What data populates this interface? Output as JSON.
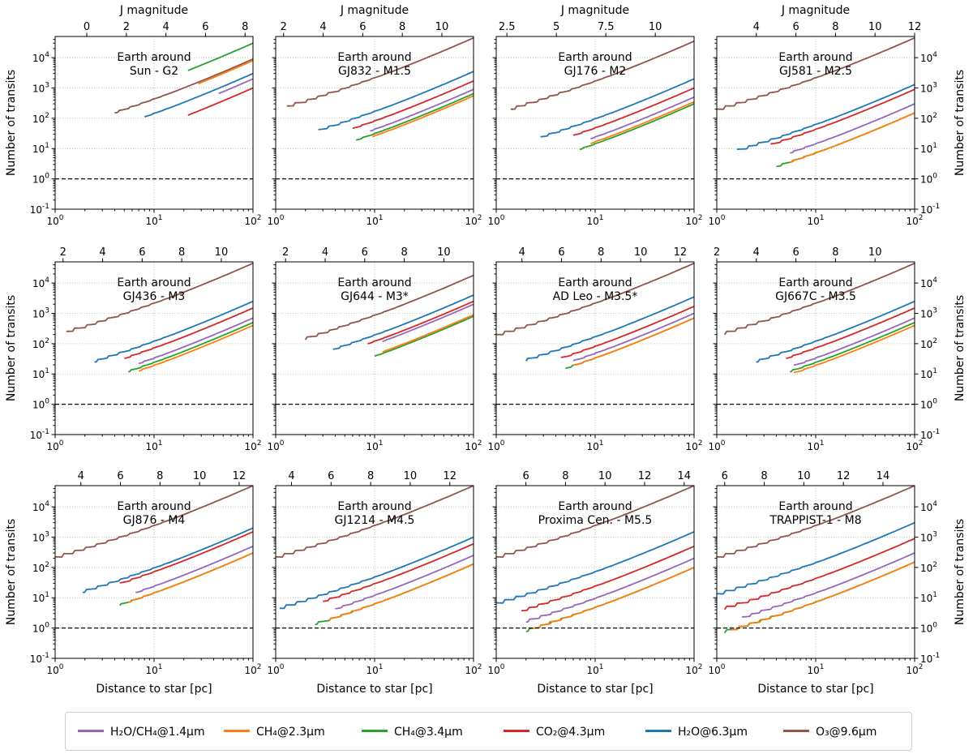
{
  "chart_data": {
    "type": "line",
    "layout": "3x4 grid of small multiples",
    "xlabel": "Distance to star [pc]",
    "ylabel": "Number of transits",
    "top_axis_label": "J magnitude",
    "xscale": "log",
    "yscale": "log",
    "xlim": [
      1,
      100
    ],
    "ylim": [
      0.1,
      50000
    ],
    "x_ticks": [
      "10^0",
      "10^1",
      "10^2"
    ],
    "y_ticks": [
      "10^-1",
      "10^0",
      "10^1",
      "10^2",
      "10^3",
      "10^4"
    ],
    "reference_line": {
      "y": 1,
      "style": "dashed",
      "color": "#000000"
    },
    "grid": true,
    "legend": [
      {
        "key": "h2o_ch4",
        "label": "H₂O/CH₄@1.4μm",
        "color": "#9467bd"
      },
      {
        "key": "ch4_23",
        "label": "CH₄@2.3μm",
        "color": "#ff7f0e"
      },
      {
        "key": "ch4_34",
        "label": "CH₄@3.4μm",
        "color": "#2ca02c"
      },
      {
        "key": "co2",
        "label": "CO₂@4.3μm",
        "color": "#d62728"
      },
      {
        "key": "h2o_63",
        "label": "H₂O@6.3μm",
        "color": "#1f77b4"
      },
      {
        "key": "o3",
        "label": "O₃@9.6μm",
        "color": "#8c564b"
      }
    ],
    "panels": [
      {
        "title_line1": "Earth around",
        "title_line2": "Sun - G2",
        "jmag": {
          "m1": -1.6,
          "ticks": [
            0,
            2,
            4,
            6,
            8
          ]
        },
        "series": {
          "h2o_ch4": {
            "d_min": 45,
            "y100": 2000
          },
          "ch4_23": {
            "d_min": 28,
            "y100": 8000
          },
          "ch4_34": {
            "d_min": 22,
            "y100": 30000
          },
          "co2": {
            "d_min": 22,
            "y100": 1000
          },
          "h2o_63": {
            "d_min": 8,
            "y100": 3000
          },
          "o3": {
            "d_min": 4,
            "y100": 9000
          }
        }
      },
      {
        "title_line1": "Earth around",
        "title_line2": "GJ832 - M1.5",
        "jmag": {
          "m1": 1.6,
          "ticks": [
            2,
            4,
            6,
            8,
            10
          ]
        },
        "series": {
          "h2o_ch4": {
            "d_min": 9,
            "y100": 900
          },
          "ch4_23": {
            "d_min": 9.5,
            "y100": 550
          },
          "ch4_34": {
            "d_min": 6.5,
            "y100": 650
          },
          "co2": {
            "d_min": 6,
            "y100": 1700
          },
          "h2o_63": {
            "d_min": 2.7,
            "y100": 3500
          },
          "o3": {
            "d_min": 1.3,
            "y100": 45000
          }
        }
      },
      {
        "title_line1": "Earth around",
        "title_line2": "GJ176 - M2",
        "jmag": {
          "m1": 1.96,
          "ticks": [
            2.5,
            5.0,
            7.5,
            10.0
          ]
        },
        "series": {
          "h2o_ch4": {
            "d_min": 9,
            "y100": 500
          },
          "ch4_23": {
            "d_min": 9,
            "y100": 350
          },
          "ch4_34": {
            "d_min": 7,
            "y100": 300
          },
          "co2": {
            "d_min": 6,
            "y100": 1000
          },
          "h2o_63": {
            "d_min": 2.8,
            "y100": 2000
          },
          "o3": {
            "d_min": 1.4,
            "y100": 35000
          }
        }
      },
      {
        "title_line1": "Earth around",
        "title_line2": "GJ581 - M2.5",
        "jmag": {
          "m1": 2.0,
          "ticks": [
            4,
            6,
            8,
            10,
            12
          ]
        },
        "series": {
          "h2o_ch4": {
            "d_min": 5.5,
            "y100": 300
          },
          "ch4_23": {
            "d_min": 5.5,
            "y100": 150
          },
          "ch4_34": {
            "d_min": 4,
            "y100": 150
          },
          "co2": {
            "d_min": 3.5,
            "y100": 900
          },
          "h2o_63": {
            "d_min": 1.6,
            "y100": 1300
          },
          "o3": {
            "d_min": 1.0,
            "y100": 45000
          }
        }
      },
      {
        "title_line1": "Earth around",
        "title_line2": "GJ436 - M3",
        "jmag": {
          "m1": 1.6,
          "ticks": [
            2,
            4,
            6,
            8,
            10
          ]
        },
        "series": {
          "h2o_ch4": {
            "d_min": 7,
            "y100": 700
          },
          "ch4_23": {
            "d_min": 7,
            "y100": 400
          },
          "ch4_34": {
            "d_min": 5.5,
            "y100": 500
          },
          "co2": {
            "d_min": 5,
            "y100": 1500
          },
          "h2o_63": {
            "d_min": 2.5,
            "y100": 2500
          },
          "o3": {
            "d_min": 1.3,
            "y100": 45000
          }
        }
      },
      {
        "title_line1": "Earth around",
        "title_line2": "GJ644 - M3*",
        "jmag": {
          "m1": 1.5,
          "ticks": [
            2,
            4,
            6,
            8,
            10
          ]
        },
        "series": {
          "h2o_ch4": {
            "d_min": 12,
            "y100": 2000
          },
          "ch4_23": {
            "d_min": 12,
            "y100": 900
          },
          "ch4_34": {
            "d_min": 10,
            "y100": 800
          },
          "co2": {
            "d_min": 8.5,
            "y100": 2500
          },
          "h2o_63": {
            "d_min": 3.8,
            "y100": 4000
          },
          "o3": {
            "d_min": 2,
            "y100": 18000
          }
        }
      },
      {
        "title_line1": "Earth around",
        "title_line2": "AD Leo - M3.5*",
        "jmag": {
          "m1": 2.7,
          "ticks": [
            4,
            6,
            8,
            10,
            12
          ]
        },
        "series": {
          "h2o_ch4": {
            "d_min": 6,
            "y100": 1000
          },
          "ch4_23": {
            "d_min": 6,
            "y100": 700
          },
          "ch4_34": {
            "d_min": 5,
            "y100": 700
          },
          "co2": {
            "d_min": 4.5,
            "y100": 1700
          },
          "h2o_63": {
            "d_min": 2,
            "y100": 3500
          },
          "o3": {
            "d_min": 1.0,
            "y100": 45000
          }
        }
      },
      {
        "title_line1": "Earth around",
        "title_line2": "GJ667C - M3.5",
        "jmag": {
          "m1": 2.0,
          "ticks": [
            2,
            4,
            6,
            8,
            10
          ]
        },
        "series": {
          "h2o_ch4": {
            "d_min": 6,
            "y100": 700
          },
          "ch4_23": {
            "d_min": 6,
            "y100": 400
          },
          "ch4_34": {
            "d_min": 5.5,
            "y100": 500
          },
          "co2": {
            "d_min": 5,
            "y100": 1500
          },
          "h2o_63": {
            "d_min": 2.5,
            "y100": 2500
          },
          "o3": {
            "d_min": 1.2,
            "y100": 45000
          }
        }
      },
      {
        "title_line1": "Earth around",
        "title_line2": "GJ876 - M4",
        "jmag": {
          "m1": 2.7,
          "ticks": [
            4,
            6,
            8,
            10,
            12
          ]
        },
        "series": {
          "h2o_ch4": {
            "d_min": 6.5,
            "y100": 500
          },
          "ch4_23": {
            "d_min": 5.5,
            "y100": 300
          },
          "ch4_34": {
            "d_min": 4.5,
            "y100": 300
          },
          "co2": {
            "d_min": 4.5,
            "y100": 1500
          },
          "h2o_63": {
            "d_min": 1.9,
            "y100": 2000
          },
          "o3": {
            "d_min": 1.0,
            "y100": 50000
          }
        }
      },
      {
        "title_line1": "Earth around",
        "title_line2": "GJ1214 - M4.5",
        "jmag": {
          "m1": 3.2,
          "ticks": [
            4,
            6,
            8,
            10,
            12
          ]
        },
        "series": {
          "h2o_ch4": {
            "d_min": 4,
            "y100": 250
          },
          "ch4_23": {
            "d_min": 3.5,
            "y100": 130
          },
          "ch4_34": {
            "d_min": 2.5,
            "y100": 130
          },
          "co2": {
            "d_min": 3.0,
            "y100": 600
          },
          "h2o_63": {
            "d_min": 1.1,
            "y100": 1000
          },
          "o3": {
            "d_min": 1.0,
            "y100": 50000
          }
        }
      },
      {
        "title_line1": "Earth around",
        "title_line2": "Proxima Cen. - M5.5",
        "jmag": {
          "m1": 4.5,
          "ticks": [
            6,
            8,
            10,
            12,
            14
          ]
        },
        "series": {
          "h2o_ch4": {
            "d_min": 2,
            "y100": 200
          },
          "ch4_23": {
            "d_min": 2.2,
            "y100": 100
          },
          "ch4_34": {
            "d_min": 2,
            "y100": 100
          },
          "co2": {
            "d_min": 1.8,
            "y100": 500
          },
          "h2o_63": {
            "d_min": 1.0,
            "y100": 1500
          },
          "o3": {
            "d_min": 1.0,
            "y100": 50000
          }
        }
      },
      {
        "title_line1": "Earth around",
        "title_line2": "TRAPPIST-1 - M8",
        "jmag": {
          "m1": 5.6,
          "ticks": [
            6,
            8,
            10,
            12,
            14
          ]
        },
        "series": {
          "h2o_ch4": {
            "d_min": 1.8,
            "y100": 300
          },
          "ch4_23": {
            "d_min": 1.4,
            "y100": 150
          },
          "ch4_34": {
            "d_min": 1.2,
            "y100": 150
          },
          "co2": {
            "d_min": 1.2,
            "y100": 900
          },
          "h2o_63": {
            "d_min": 1.0,
            "y100": 3000
          },
          "o3": {
            "d_min": 1.0,
            "y100": 50000
          }
        }
      }
    ]
  }
}
